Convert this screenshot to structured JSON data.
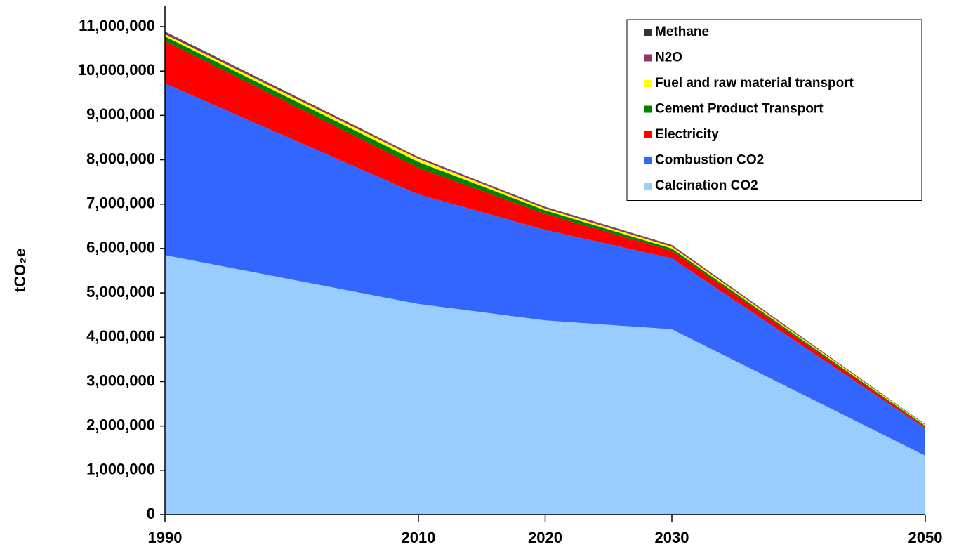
{
  "chart_data": {
    "type": "stacked-area",
    "y_label": "tCO₂e",
    "x": [
      1990,
      2010,
      2020,
      2030,
      2050
    ],
    "xlim": [
      1990,
      2050
    ],
    "xticks": [
      1990,
      2010,
      2020,
      2030,
      2050
    ],
    "ylim": [
      0,
      11000000
    ],
    "yticks": [
      0,
      {
        "value": 1000000,
        "label": "1,000,000"
      },
      {
        "value": 2000000,
        "label": "2,000,000"
      },
      {
        "value": 3000000,
        "label": "3,000,000"
      },
      {
        "value": 4000000,
        "label": "4,000,000"
      },
      {
        "value": 5000000,
        "label": "5,000,000"
      },
      {
        "value": 6000000,
        "label": "6,000,000"
      },
      {
        "value": 7000000,
        "label": "7,000,000"
      },
      {
        "value": 8000000,
        "label": "8,000,000"
      },
      {
        "value": 9000000,
        "label": "9,000,000"
      },
      {
        "value": 10000000,
        "label": "10,000,000"
      },
      {
        "value": 11000000,
        "label": "11,000,000"
      }
    ],
    "legend": "top-right",
    "series": [
      {
        "name": "Calcination CO2",
        "color": "#99ccff",
        "values": [
          5850000,
          4750000,
          4380000,
          4180000,
          1330000
        ]
      },
      {
        "name": "Combustion CO2",
        "color": "#3366ff",
        "values": [
          3870000,
          2470000,
          2040000,
          1600000,
          620000
        ]
      },
      {
        "name": "Electricity",
        "color": "#ff0000",
        "values": [
          960000,
          600000,
          360000,
          170000,
          30000
        ]
      },
      {
        "name": "Cement Product Transport",
        "color": "#008000",
        "values": [
          100000,
          130000,
          80000,
          50000,
          20000
        ]
      },
      {
        "name": "Fuel and raw material transport",
        "color": "#ffff00",
        "values": [
          50000,
          70000,
          40000,
          40000,
          20000
        ]
      },
      {
        "name": "N2O",
        "color": "#993366",
        "values": [
          40000,
          30000,
          30000,
          30000,
          10000
        ]
      },
      {
        "name": "Methane",
        "color": "#333333",
        "values": [
          20000,
          10000,
          10000,
          10000,
          5000
        ]
      }
    ]
  }
}
